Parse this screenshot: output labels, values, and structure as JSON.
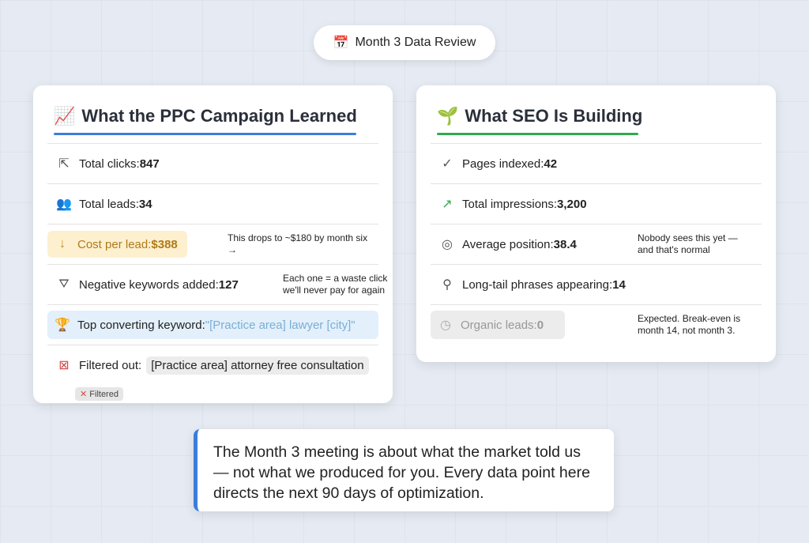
{
  "header": {
    "title": "Month 3 Data Review",
    "icon": "calendar-icon"
  },
  "ppc": {
    "title": "What the PPC Campaign Learned",
    "accent": "#3b7ddd",
    "rows": [
      {
        "label": "Total clicks: ",
        "value": "847",
        "icon": "cursor-icon"
      },
      {
        "label": "Total leads: ",
        "value": "34",
        "icon": "users-icon"
      },
      {
        "label": "Cost per lead: ",
        "value": "$388",
        "icon": "arrow-down-icon",
        "note": "This drops to ~$180 by month six →"
      },
      {
        "label": "Negative keywords added: ",
        "value": "127",
        "icon": "filter-icon",
        "note": "Each one = a waste click we'll never pay for again"
      },
      {
        "label": "Top converting keyword: ",
        "value": "\"[Practice area] lawyer [city]\"",
        "icon": "trophy-icon"
      },
      {
        "label": "Filtered out: ",
        "value": "[Practice area] attorney free consultation",
        "icon": "crossed-target-icon",
        "badge": "Filtered"
      }
    ]
  },
  "seo": {
    "title": "What SEO Is Building",
    "accent": "#2eaa4f",
    "rows": [
      {
        "label": "Pages indexed: ",
        "value": "42",
        "icon": "check-circle-icon"
      },
      {
        "label": "Total impressions: ",
        "value": "3,200",
        "icon": "trend-up-icon"
      },
      {
        "label": "Average position: ",
        "value": "38.4",
        "icon": "target-icon",
        "note": "Nobody sees this yet — and that's normal"
      },
      {
        "label": "Long-tail phrases appearing: ",
        "value": "14",
        "icon": "search-icon"
      },
      {
        "label": "Organic leads: ",
        "value": "0",
        "icon": "clock-icon",
        "note": "Expected. Break-even is month 14, not month 3."
      }
    ]
  },
  "quote": "The Month 3 meeting is about what the market told us — not what we produced for you. Every data point here directs the next 90 days of optimization."
}
